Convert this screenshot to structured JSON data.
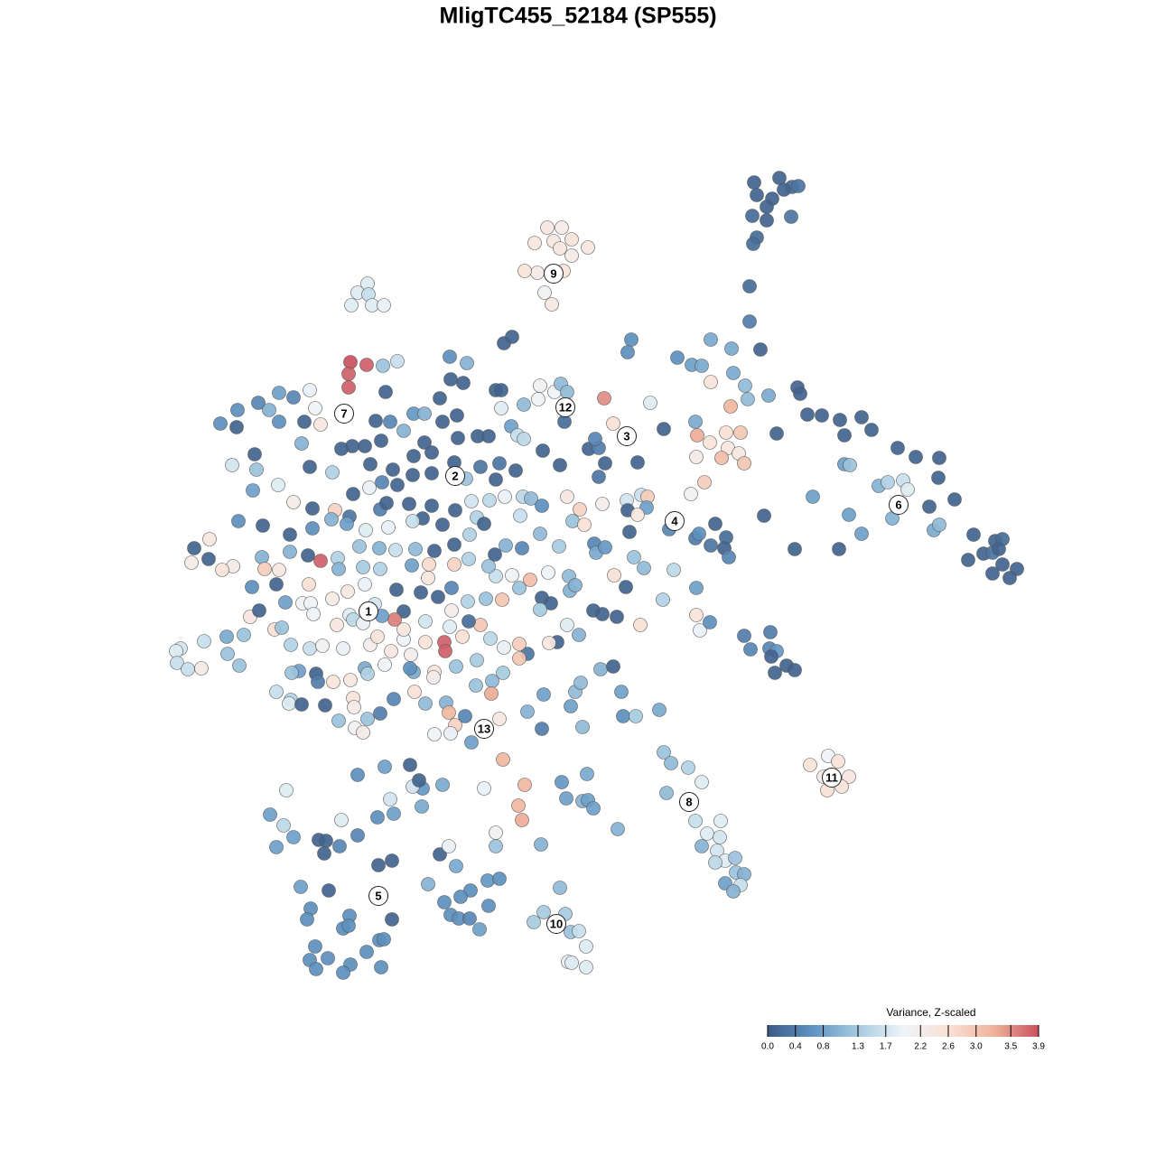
{
  "chart_data": {
    "type": "scatter",
    "title": "MligTC455_52184 (SP555)",
    "xlim": [
      0,
      1280
    ],
    "ylim": [
      1280,
      0
    ],
    "colorbar": {
      "title": "Variance, Z-scaled",
      "clim": [
        0,
        3.9
      ],
      "colors": [
        "#3b5b86",
        "#5f93c2",
        "#a6cbe0",
        "#eef4f8",
        "#f9e1d5",
        "#f0b39c",
        "#c9505e"
      ],
      "ticks": [
        {
          "value": 0,
          "label": "0.0"
        },
        0.4,
        0.8,
        1.3,
        1.7,
        2.2,
        2.6,
        {
          "value": 3,
          "label": "3.0"
        },
        3.5,
        3.9
      ]
    },
    "cluster_labels": {
      "labels": [
        "1",
        "2",
        "3",
        "4",
        "5",
        "6",
        "7",
        "8",
        "9",
        "10",
        "11",
        "12",
        "13"
      ],
      "x": [
        408,
        504,
        694,
        747,
        419,
        995,
        381,
        763,
        613,
        616,
        921,
        626,
        536
      ],
      "y": [
        677,
        527,
        483,
        577,
        992,
        559,
        458,
        888,
        303,
        1023,
        861,
        451,
        807
      ]
    },
    "x": [
      835,
      863,
      877,
      884,
      838,
      868,
      855,
      849,
      833,
      849,
      876,
      838,
      834,
      830,
      830,
      606,
      622,
      592,
      613,
      633,
      620,
      651,
      633,
      595,
      581,
      624,
      603,
      611,
      407,
      396,
      408,
      389,
      412,
      425,
      388,
      406,
      386,
      386,
      424,
      440,
      498,
      517,
      558,
      567,
      499,
      513,
      549,
      555,
      487,
      427,
      309,
      325,
      343,
      349,
      286,
      298,
      263,
      244,
      262,
      309,
      337,
      355,
      416,
      432,
      458,
      470,
      490,
      506,
      555,
      580,
      596,
      614,
      621,
      628,
      598,
      669,
      720,
      625,
      566,
      573,
      580,
      529,
      541,
      507,
      470,
      447,
      422,
      404,
      390,
      378,
      334,
      282,
      257,
      284,
      343,
      368,
      410,
      435,
      458,
      478,
      503,
      532,
      553,
      571,
      601,
      620,
      652,
      663,
      670,
      663,
      706,
      735,
      679,
      770,
      787,
      750,
      766,
      777,
      810,
      842,
      699,
      695,
      787,
      812,
      825,
      828,
      851,
      883,
      886,
      809,
      772,
      786,
      804,
      820,
      806,
      818,
      799,
      771,
      824,
      780,
      860,
      894,
      910,
      930,
      954,
      935,
      965,
      994,
      1014,
      1040,
      1039,
      1057,
      1029,
      973,
      983,
      1000,
      988,
      1005,
      935,
      941,
      900,
      940,
      954,
      1034,
      1040,
      1078,
      1089,
      1102,
      1110,
      1099,
      1106,
      1110,
      1072,
      1099,
      1126,
      1118,
      846,
      880,
      929,
      659,
      440,
      457,
      478,
      516,
      549,
      409,
      423,
      391,
      346,
      325,
      280,
      308,
      371,
      387,
      421,
      428,
      453,
      478,
      504,
      522,
      542,
      559,
      579,
      588,
      628,
      642,
      667,
      694,
      710,
      717,
      695,
      716,
      706,
      765,
      600,
      576,
      528,
      536,
      490,
      468,
      457,
      430,
      405,
      384,
      367,
      346,
      321,
      291,
      264,
      215,
      232,
      212,
      231,
      258,
      246,
      290,
      321,
      341,
      355,
      374,
      398,
      420,
      438,
      460,
      481,
      503,
      520,
      548,
      560,
      578,
      598,
      619,
      634,
      647,
      658,
      660,
      670,
      697,
      741,
      770,
      774,
      792,
      787,
      804,
      802,
      807,
      702,
      713,
      746,
      680,
      630,
      607,
      587,
      567,
      549,
      541,
      519,
      503,
      475,
      474,
      456,
      439,
      421,
      402,
      375,
      342,
      309,
      293,
      279,
      306,
      316,
      335,
      344,
      368,
      385,
      404,
      415,
      387,
      391,
      373,
      347,
      277,
      287,
      270,
      304,
      312,
      322,
      343,
      357,
      380,
      402,
      410,
      418,
      433,
      447,
      447,
      447,
      437,
      423,
      471,
      466,
      485,
      500,
      518,
      538,
      556,
      575,
      600,
      610,
      598,
      631,
      637,
      657,
      667,
      683,
      693,
      734,
      771,
      771,
      775,
      786,
      709,
      641,
      628,
      617,
      608,
      584,
      575,
      558,
      543,
      532,
      519,
      498,
      500,
      512,
      492,
      493,
      471,
      455,
      505,
      528,
      545,
      557,
      575,
      544,
      527,
      481,
      480,
      458,
      454,
      426,
      404,
      407,
      388,
      369,
      350,
      352,
      331,
      323,
      306,
      322,
      320,
      334,
      360,
      391,
      392,
      375,
      393,
      402,
      407,
      421,
      436,
      459,
      471,
      494,
      497,
      504,
      515,
      481,
      499,
      522,
      553,
      600,
      584,
      602,
      632,
      637,
      643,
      665,
      679,
      688,
      690,
      704,
      730,
      645,
      824,
      853,
      831,
      852,
      860,
      854,
      871,
      880,
      858,
      200,
      195,
      196,
      208,
      223,
      226,
      252,
      265,
      251,
      735,
      743,
      762,
      777,
      738,
      770,
      783,
      798,
      797,
      777,
      794,
      803,
      814,
      792,
      815,
      824,
      820,
      803,
      812,
      917,
      928,
      897,
      912,
      940,
      916,
      932,
      557,
      581,
      574,
      578,
      549,
      549,
      599,
      684,
      650,
      622,
      627,
      645,
      651,
      657,
      536,
      490,
      468,
      457,
      454,
      464,
      426,
      396,
      317,
      432,
      436,
      418,
      467,
      378,
      299,
      314,
      325,
      306,
      353,
      361,
      376,
      396,
      359,
      419,
      434,
      487,
      497,
      505,
      474,
      521,
      540,
      553,
      492,
      510,
      499,
      508,
      520,
      541,
      531,
      364,
      333,
      344,
      340,
      387,
      434,
      380,
      386,
      420,
      425,
      406,
      388,
      349,
      343,
      363,
      350,
      380,
      422,
      620,
      602,
      626,
      591,
      632,
      641,
      649,
      629,
      633,
      649
    ],
    "y": [
      202,
      197,
      207,
      206,
      216,
      210,
      220,
      229,
      239,
      244,
      240,
      263,
      270,
      317,
      356,
      252,
      252,
      269,
      267,
      265,
      275,
      274,
      283,
      302,
      300,
      300,
      324,
      337,
      314,
      324,
      326,
      338,
      338,
      338,
      401,
      404,
      414,
      429,
      405,
      400,
      395,
      402,
      380,
      373,
      420,
      424,
      432,
      432,
      441,
      434,
      435,
      440,
      432,
      452,
      446,
      454,
      454,
      469,
      473,
      467,
      467,
      470,
      466,
      467,
      458,
      458,
      467,
      460,
      452,
      448,
      442,
      434,
      425,
      434,
      427,
      441,
      446,
      467,
      472,
      482,
      486,
      483,
      483,
      485,
      490,
      477,
      488,
      494,
      494,
      497,
      491,
      503,
      515,
      520,
      517,
      523,
      514,
      520,
      505,
      501,
      512,
      517,
      513,
      521,
      499,
      515,
      497,
      496,
      513,
      528,
      512,
      475,
      469,
      467,
      376,
      396,
      404,
      405,
      386,
      387,
      376,
      390,
      423,
      413,
      427,
      442,
      438,
      429,
      436,
      450,
      482,
      490,
      479,
      479,
      496,
      502,
      507,
      506,
      513,
      534,
      480,
      459,
      460,
      465,
      462,
      482,
      476,
      496,
      506,
      507,
      529,
      553,
      561,
      538,
      534,
      532,
      574,
      542,
      514,
      515,
      550,
      570,
      591,
      587,
      581,
      592,
      613,
      599,
      597,
      612,
      608,
      625,
      620,
      635,
      630,
      640,
      571,
      608,
      608,
      486,
      537,
      526,
      524,
      530,
      531,
      540,
      534,
      547,
      563,
      556,
      543,
      537,
      565,
      572,
      564,
      557,
      558,
      560,
      565,
      555,
      554,
      550,
      550,
      552,
      550,
      564,
      558,
      554,
      548,
      550,
      565,
      562,
      570,
      547,
      560,
      571,
      573,
      580,
      581,
      574,
      577,
      584,
      587,
      580,
      575,
      585,
      592,
      582,
      577,
      607,
      597,
      623,
      619,
      627,
      631,
      617,
      611,
      615,
      621,
      618,
      605,
      607,
      609,
      608,
      610,
      603,
      592,
      614,
      604,
      607,
      591,
      605,
      577,
      581,
      602,
      612,
      606,
      589,
      586,
      596,
      591,
      580,
      604,
      595,
      607,
      617,
      617,
      629,
      631,
      637,
      638,
      634,
      642,
      637,
      638,
      627,
      619,
      625,
      625,
      640,
      626,
      653,
      630,
      628,
      630,
      647,
      631,
      630,
      650,
      647,
      667,
      668,
      668,
      663,
      655,
      647,
      669,
      681,
      686,
      692,
      680,
      683,
      676,
      703,
      697,
      695,
      714,
      718,
      715,
      718,
      690,
      714,
      705,
      721,
      708,
      697,
      677,
      686,
      682,
      688,
      656,
      661,
      651,
      666,
      663,
      664,
      651,
      662,
      668,
      675,
      654,
      648,
      676,
      680,
      683,
      650,
      664,
      651,
      681,
      698,
      689,
      692,
      703,
      692,
      711,
      712,
      724,
      713,
      717,
      707,
      692,
      688,
      694,
      676,
      705,
      711,
      721,
      711,
      725,
      738,
      731,
      754,
      745,
      729,
      768,
      759,
      744,
      750,
      744,
      740,
      736,
      740,
      746,
      753,
      755,
      746,
      755,
      743,
      745,
      766,
      775,
      779,
      780,
      781,
      773,
      783,
      798,
      806,
      811,
      796,
      790,
      774,
      766,
      779,
      778,
      789,
      803,
      793,
      813,
      812,
      822,
      796,
      807,
      788,
      769,
      782,
      766,
      756,
      741,
      738,
      766,
      793,
      793,
      786,
      805,
      704,
      700,
      719,
      718,
      721,
      727,
      737,
      742,
      745,
      718,
      721,
      734,
      741,
      740,
      710,
      724,
      737,
      705,
      833,
      845,
      850,
      866,
      878,
      909,
      923,
      909,
      927,
      937,
      942,
      953,
      950,
      955,
      966,
      968,
      980,
      978,
      987,
      837,
      843,
      847,
      860,
      860,
      875,
      871,
      841,
      869,
      892,
      908,
      922,
      937,
      935,
      918,
      857,
      866,
      884,
      887,
      886,
      895,
      873,
      869,
      873,
      871,
      847,
      864,
      849,
      858,
      875,
      885,
      901,
      905,
      893,
      908,
      902,
      914,
      927,
      938,
      930,
      931,
      937,
      925,
      945,
      958,
      953,
      946,
      937,
      959,
      979,
      986,
      975,
      973,
      999,
      993,
      1013,
      1017,
      1017,
      1003,
      1029,
      986,
      982,
      1006,
      1018,
      1014,
      1018,
      1028,
      1025,
      1041,
      1040,
      1054,
      1068,
      1048,
      1063,
      1061,
      1073,
      1077,
      1071,
      983,
      1010,
      1012,
      1021,
      1032,
      1031,
      1048,
      1065,
      1066,
      1071
    ],
    "values": [
      0.1,
      0.1,
      0.2,
      0.3,
      0.1,
      0.1,
      0.1,
      0.1,
      0.2,
      0.1,
      0.3,
      0.2,
      0.2,
      0.2,
      0.4,
      2.4,
      2.3,
      2.4,
      2.4,
      2.5,
      2.4,
      2.4,
      2.3,
      2.3,
      2.5,
      2.5,
      2.1,
      2.4,
      1.8,
      1.8,
      1.6,
      1.8,
      1.8,
      1.9,
      3.9,
      3.8,
      3.8,
      3.8,
      1.2,
      1.6,
      0.6,
      1.0,
      0.1,
      0.1,
      0.1,
      0.1,
      0.1,
      0.1,
      0.1,
      0.1,
      0.8,
      0.5,
      1.9,
      2.0,
      0.5,
      1.0,
      0.6,
      0.6,
      0.1,
      0.6,
      0.1,
      2.4,
      0.1,
      0.5,
      0.7,
      1.0,
      0.1,
      0.1,
      1.8,
      1.1,
      2.0,
      2.0,
      1.1,
      1.1,
      2.1,
      3.5,
      1.8,
      0.2,
      0.8,
      1.6,
      1.5,
      0.1,
      0.1,
      0.1,
      0.1,
      1.0,
      0.1,
      0.1,
      0.1,
      0.1,
      1.0,
      0.1,
      1.7,
      1.2,
      0.1,
      1.4,
      0.1,
      0.1,
      0.1,
      0.1,
      0.1,
      0.3,
      0.3,
      0.1,
      0.1,
      0.1,
      0.1,
      0.4,
      0.1,
      0.3,
      0.1,
      0.1,
      2.6,
      0.9,
      0.9,
      0.6,
      0.8,
      0.9,
      0.9,
      0.1,
      0.6,
      0.6,
      2.5,
      0.9,
      1.1,
      1.1,
      0.9,
      0.1,
      0.1,
      3.2,
      3.3,
      2.5,
      2.6,
      3.0,
      2.4,
      2.4,
      3.1,
      2.3,
      3.0,
      2.9,
      0.1,
      0.1,
      0.1,
      0.1,
      0.1,
      0.1,
      0.1,
      0.1,
      0.1,
      0.1,
      0.1,
      0.1,
      0.1,
      1.0,
      1.4,
      1.6,
      1.0,
      1.8,
      0.8,
      1.2,
      0.8,
      0.8,
      0.8,
      0.9,
      1.1,
      0.1,
      0.1,
      0.1,
      0.2,
      0.3,
      0.1,
      0.1,
      0.1,
      0.1,
      0.1,
      0.1,
      0.1,
      0.1,
      0.1,
      0.5,
      0.1,
      0.1,
      0.1,
      1.2,
      0.1,
      1.9,
      0.5,
      0.1,
      0.1,
      2.3,
      0.8,
      1.8,
      2.8,
      0.3,
      0.4,
      0.1,
      0.1,
      0.1,
      0.1,
      1.7,
      1.5,
      1.9,
      1.5,
      1.1,
      2.4,
      2.8,
      2.2,
      1.7,
      1.6,
      2.9,
      0.1,
      0.8,
      2.4,
      2.1,
      0.6,
      1.6,
      1.4,
      0.1,
      0.1,
      0.1,
      1.6,
      1.9,
      1.8,
      0.8,
      1.0,
      0.6,
      0.1,
      0.1,
      0.6,
      0.1,
      2.4,
      2.3,
      0.1,
      2.3,
      2.5,
      1.0,
      1.0,
      0.1,
      3.8,
      1.4,
      1.2,
      1.0,
      1.6,
      1.1,
      0.1,
      0.1,
      1.4,
      0.1,
      1.0,
      0.5,
      1.1,
      1.3,
      1.2,
      2.6,
      0.5,
      0.9,
      0.7,
      0.1,
      0.5,
      0.4,
      0.6,
      0.1,
      0.3,
      0.2,
      0.1,
      0.5,
      1.2,
      1.1,
      1.5,
      2.6,
      1.1,
      2.0,
      3.1,
      2.0,
      1.6,
      1.2,
      1.4,
      2.8,
      2.7,
      2.4,
      0.8,
      0.1,
      1.4,
      1.3,
      1.0,
      2.6,
      2.4,
      2.9,
      0.6,
      0.1,
      0.8,
      2.0,
      2.0,
      2.3,
      2.4,
      1.9,
      1.7,
      1.8,
      1.5,
      2.4,
      2.0,
      2.4,
      0.1,
      1.2,
      2.6,
      1.2,
      1.4,
      1.6,
      2.1,
      1.9,
      1.9,
      2.2,
      2.5,
      2.4,
      2.0,
      2.4,
      0.1,
      3.6,
      0.8,
      1.7,
      0.1,
      0.1,
      0.5,
      1.4,
      1.2,
      3.0,
      1.2,
      0.1,
      0.1,
      1.3,
      1.0,
      1.0,
      0.1,
      0.1,
      0.1,
      0.1,
      1.4,
      0.8,
      2.5,
      1.9,
      0.6,
      2.6,
      1.0,
      1.8,
      0.1,
      2.4,
      0.3,
      2.9,
      1.9,
      1.5,
      3.0,
      0.2,
      1.8,
      2.2,
      2.6,
      3.8,
      3.8,
      2.5,
      2.2,
      1.2,
      1.3,
      1.1,
      1.3,
      3.0,
      3.3,
      1.2,
      2.5,
      2.2,
      0.9,
      0.6,
      2.0,
      0.9,
      1.4,
      2.4,
      2.5,
      0.1,
      0.4,
      0.8,
      1.2,
      1.6,
      1.4,
      1.8,
      0.1,
      0.1,
      2.5,
      2.3,
      1.2,
      2.1,
      2.3,
      1.2,
      0.4,
      0.5,
      2.6,
      1.1,
      1.0,
      3.2,
      2.8,
      0.5,
      2.0,
      1.9,
      0.8,
      2.4,
      0.4,
      1.0,
      0.8,
      0.8,
      1.1,
      1.1,
      1.0,
      0.1,
      0.8,
      0.6,
      1.3,
      0.9,
      1.1,
      0.4,
      0.4,
      0.5,
      0.5,
      0.7,
      0.1,
      0.1,
      0.1,
      0.1,
      1.7,
      1.8,
      1.6,
      1.6,
      2.3,
      1.6,
      1.2,
      1.2,
      0.9,
      1.2,
      1.1,
      1.4,
      1.8,
      1.1,
      1.6,
      1.8,
      1.8,
      1.7,
      1.0,
      1.7,
      1.8,
      1.2,
      1.5,
      1.2,
      1.0,
      1.6,
      0.8,
      1.0,
      2.0,
      2.5,
      2.5,
      2.3,
      2.4,
      2.6,
      2.5,
      3.2,
      3.2,
      3.2,
      3.3,
      2.1,
      1.2,
      1.0,
      1.0,
      0.9,
      0.7,
      0.8,
      1.0,
      0.8,
      0.8,
      1.9,
      0.9,
      0.7,
      1.7,
      0.1,
      0.1,
      0.8,
      0.6,
      1.8,
      1.7,
      0.8,
      0.6,
      0.9,
      1.8,
      0.8,
      1.5,
      0.8,
      0.8,
      0.1,
      0.1,
      0.5,
      0.5,
      0.1,
      0.1,
      0.1,
      0.1,
      1.9,
      0.9,
      1.0,
      0.6,
      0.7,
      0.6,
      0.6,
      0.6,
      0.6,
      0.6,
      0.5,
      0.6,
      0.8,
      0.1,
      0.8,
      0.6,
      0.6,
      0.6,
      0.1,
      0.6,
      0.6,
      0.6,
      0.6,
      0.6,
      0.6,
      0.6,
      0.6,
      0.6,
      0.6,
      0.6,
      0.6,
      1.1,
      1.3,
      1.3,
      1.3,
      1.2,
      1.6,
      1.8,
      1.9,
      1.8,
      1.8
    ]
  }
}
